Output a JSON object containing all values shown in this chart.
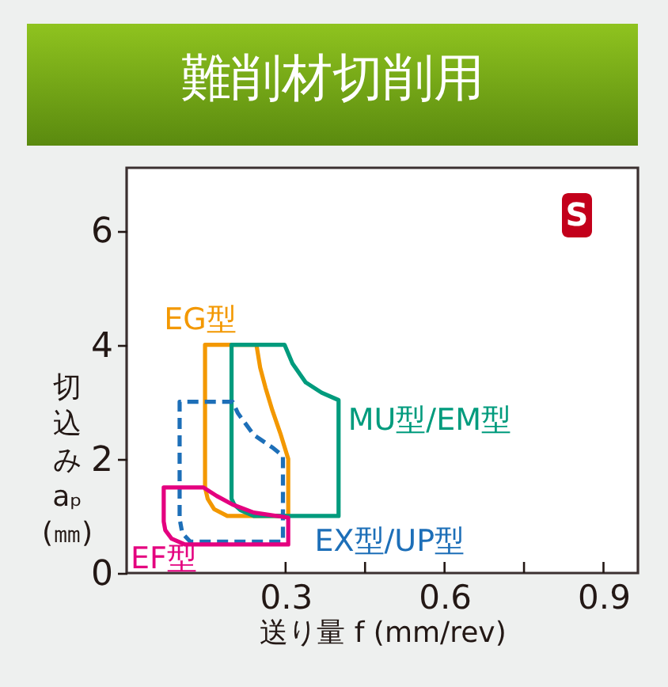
{
  "chart_data": {
    "type": "line",
    "title": "難削材切削用",
    "xlabel": "送り量 f (mm/rev)",
    "ylabel": "切込み aₚ (㎜)",
    "xlim": [
      0,
      0.965
    ],
    "ylim": [
      0,
      7.1
    ],
    "xticks": [
      0.3,
      {
        "value": 0.45,
        "label": null
      },
      0.6,
      {
        "value": 0.75,
        "label": null
      },
      0.9
    ],
    "yticks": [
      0,
      2,
      4,
      6
    ],
    "annotations": [
      "S"
    ],
    "series": [
      {
        "name": "EG型",
        "color": "#f39800",
        "line_style": "solid",
        "x": [
          0.148,
          0.148,
          0.245,
          0.252,
          0.262,
          0.275,
          0.29,
          0.305,
          0.305,
          0.19,
          0.165,
          0.153,
          0.148,
          0.148
        ],
        "values": [
          2.5,
          4.0,
          4.0,
          3.6,
          3.25,
          2.85,
          2.45,
          2.0,
          1.0,
          1.0,
          1.12,
          1.3,
          1.5,
          3.0
        ]
      },
      {
        "name": "MU型/EM型",
        "color": "#009b7d",
        "line_style": "solid",
        "x": [
          0.198,
          0.198,
          0.298,
          0.313,
          0.338,
          0.368,
          0.4,
          0.4,
          0.24,
          0.215,
          0.203,
          0.198,
          0.198
        ],
        "values": [
          2.5,
          4.0,
          4.0,
          3.67,
          3.34,
          3.16,
          3.03,
          1.0,
          1.0,
          1.1,
          1.2,
          1.3,
          3.0
        ]
      },
      {
        "name": "EX型/UP型",
        "color": "#1d6fb8",
        "line_style": "dashed",
        "x": [
          0.1,
          0.1,
          0.2,
          0.21,
          0.24,
          0.275,
          0.295,
          0.295,
          0.12,
          0.105,
          0.101
        ],
        "values": [
          1.0,
          3.0,
          3.0,
          2.8,
          2.42,
          2.2,
          2.05,
          0.55,
          0.55,
          0.7,
          0.9
        ]
      },
      {
        "name": "EF型",
        "color": "#e4007f",
        "line_style": "solid",
        "x": [
          0.07,
          0.07,
          0.145,
          0.17,
          0.2,
          0.24,
          0.305,
          0.305,
          0.11,
          0.085,
          0.073,
          0.07,
          0.07
        ],
        "values": [
          1.1,
          1.5,
          1.5,
          1.35,
          1.2,
          1.06,
          0.97,
          0.5,
          0.5,
          0.6,
          0.75,
          0.9,
          1.4
        ]
      }
    ]
  }
}
